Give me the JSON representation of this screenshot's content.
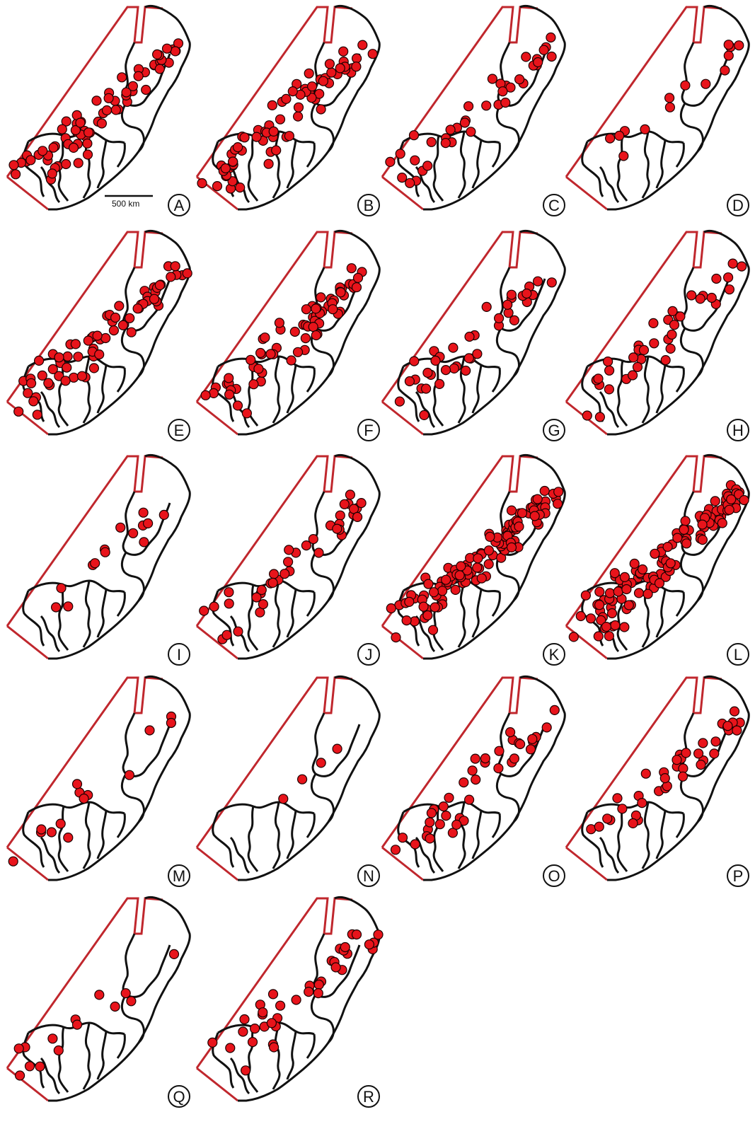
{
  "figure": {
    "scale_bar_label": "500 km",
    "marker_color": "#e8141b",
    "marker_stroke": "#1a0000",
    "frame_color": "#c0272d",
    "outline_color": "#111111"
  },
  "panels": [
    {
      "label": "A",
      "density": "high"
    },
    {
      "label": "B",
      "density": "high"
    },
    {
      "label": "C",
      "density": "medium"
    },
    {
      "label": "D",
      "density": "low"
    },
    {
      "label": "E",
      "density": "high"
    },
    {
      "label": "F",
      "density": "high"
    },
    {
      "label": "G",
      "density": "medium"
    },
    {
      "label": "H",
      "density": "medium"
    },
    {
      "label": "I",
      "density": "low"
    },
    {
      "label": "J",
      "density": "medium"
    },
    {
      "label": "K",
      "density": "very-high"
    },
    {
      "label": "L",
      "density": "very-high"
    },
    {
      "label": "M",
      "density": "low"
    },
    {
      "label": "N",
      "density": "very-low"
    },
    {
      "label": "O",
      "density": "medium"
    },
    {
      "label": "P",
      "density": "medium"
    },
    {
      "label": "Q",
      "density": "low"
    },
    {
      "label": "R",
      "density": "medium"
    }
  ]
}
